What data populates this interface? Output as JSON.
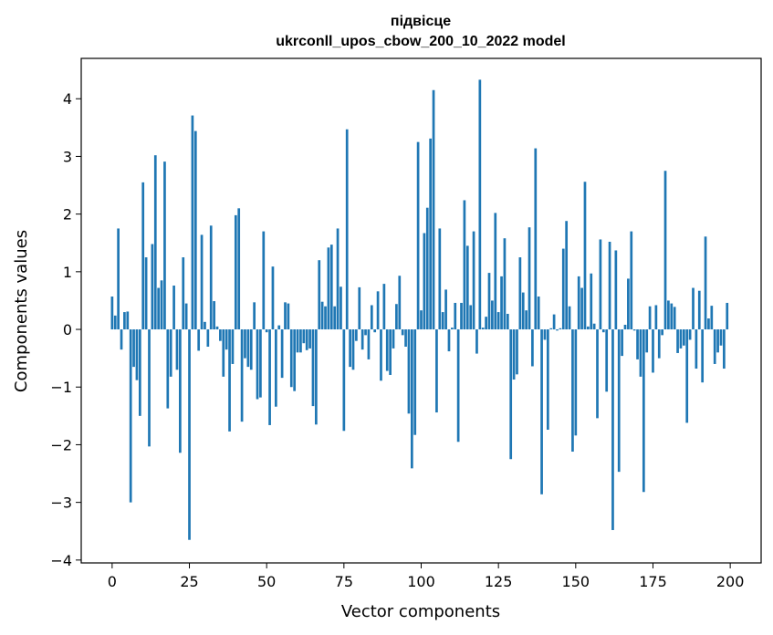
{
  "chart_data": {
    "type": "bar",
    "title_lines": [
      "підвісце",
      "ukrconll_upos_cbow_200_10_2022 model"
    ],
    "xlabel": "Vector components",
    "ylabel": "Components values",
    "xlim": [
      -10,
      210
    ],
    "ylim": [
      -4.05,
      4.7
    ],
    "xticks": [
      0,
      25,
      50,
      75,
      100,
      125,
      150,
      175,
      200
    ],
    "yticks": [
      -4,
      -3,
      -2,
      -1,
      0,
      1,
      2,
      3,
      4
    ],
    "bar_color": "#1f77b4",
    "grid": false,
    "legend": "none",
    "x": [
      0,
      1,
      2,
      3,
      4,
      5,
      6,
      7,
      8,
      9,
      10,
      11,
      12,
      13,
      14,
      15,
      16,
      17,
      18,
      19,
      20,
      21,
      22,
      23,
      24,
      25,
      26,
      27,
      28,
      29,
      30,
      31,
      32,
      33,
      34,
      35,
      36,
      37,
      38,
      39,
      40,
      41,
      42,
      43,
      44,
      45,
      46,
      47,
      48,
      49,
      50,
      51,
      52,
      53,
      54,
      55,
      56,
      57,
      58,
      59,
      60,
      61,
      62,
      63,
      64,
      65,
      66,
      67,
      68,
      69,
      70,
      71,
      72,
      73,
      74,
      75,
      76,
      77,
      78,
      79,
      80,
      81,
      82,
      83,
      84,
      85,
      86,
      87,
      88,
      89,
      90,
      91,
      92,
      93,
      94,
      95,
      96,
      97,
      98,
      99,
      100,
      101,
      102,
      103,
      104,
      105,
      106,
      107,
      108,
      109,
      110,
      111,
      112,
      113,
      114,
      115,
      116,
      117,
      118,
      119,
      120,
      121,
      122,
      123,
      124,
      125,
      126,
      127,
      128,
      129,
      130,
      131,
      132,
      133,
      134,
      135,
      136,
      137,
      138,
      139,
      140,
      141,
      142,
      143,
      144,
      145,
      146,
      147,
      148,
      149,
      150,
      151,
      152,
      153,
      154,
      155,
      156,
      157,
      158,
      159,
      160,
      161,
      162,
      163,
      164,
      165,
      166,
      167,
      168,
      169,
      170,
      171,
      172,
      173,
      174,
      175,
      176,
      177,
      178,
      179,
      180,
      181,
      182,
      183,
      184,
      185,
      186,
      187,
      188,
      189,
      190,
      191,
      192,
      193,
      194,
      195,
      196,
      197,
      198,
      199
    ],
    "values": [
      0.57,
      0.24,
      1.75,
      -0.35,
      0.3,
      0.31,
      -3.0,
      -0.65,
      -0.88,
      -1.5,
      2.55,
      1.25,
      -2.03,
      1.48,
      3.02,
      0.72,
      0.85,
      2.91,
      -1.37,
      -0.82,
      0.76,
      -0.7,
      -2.14,
      1.25,
      0.45,
      -3.65,
      3.71,
      3.44,
      -0.37,
      1.64,
      0.13,
      -0.3,
      1.8,
      0.49,
      0.05,
      -0.2,
      -0.82,
      -0.35,
      -1.77,
      -0.6,
      1.98,
      2.1,
      -1.6,
      -0.5,
      -0.65,
      -0.7,
      0.47,
      -1.21,
      -1.18,
      1.7,
      -0.05,
      -1.66,
      1.09,
      -1.34,
      0.07,
      -0.84,
      0.47,
      0.45,
      -1.0,
      -1.07,
      -0.4,
      -0.4,
      -0.24,
      -0.36,
      -0.33,
      -1.33,
      -1.65,
      1.2,
      0.48,
      0.4,
      1.42,
      1.47,
      0.4,
      1.75,
      0.74,
      -1.76,
      3.47,
      -0.65,
      -0.7,
      -0.2,
      0.73,
      -0.35,
      -0.1,
      -0.52,
      0.42,
      -0.05,
      0.66,
      -0.89,
      0.79,
      -0.72,
      -0.79,
      -0.33,
      0.44,
      0.93,
      -0.1,
      -0.3,
      -1.46,
      -2.41,
      -1.83,
      3.25,
      0.33,
      1.67,
      2.11,
      3.31,
      4.15,
      -1.44,
      1.75,
      0.3,
      0.69,
      -0.38,
      0.03,
      0.46,
      -1.95,
      0.46,
      2.24,
      1.45,
      0.42,
      1.7,
      -0.42,
      4.33,
      0.03,
      0.22,
      0.98,
      0.5,
      2.02,
      0.3,
      0.92,
      1.58,
      0.27,
      -2.25,
      -0.87,
      -0.78,
      1.25,
      0.64,
      0.33,
      1.77,
      -0.64,
      3.14,
      0.57,
      -2.86,
      -0.18,
      -1.74,
      0.02,
      0.26,
      -0.02,
      0.02,
      1.4,
      1.88,
      0.4,
      -2.12,
      -1.84,
      0.92,
      0.72,
      2.56,
      0.05,
      0.97,
      0.1,
      -1.54,
      1.56,
      -0.05,
      -1.08,
      1.52,
      -3.48,
      1.37,
      -2.47,
      -0.46,
      0.08,
      0.88,
      1.7,
      -0.02,
      -0.52,
      -0.82,
      -2.82,
      -0.4,
      0.4,
      -0.75,
      0.42,
      -0.5,
      -0.1,
      2.75,
      0.5,
      0.45,
      0.39,
      -0.41,
      -0.33,
      -0.28,
      -1.62,
      -0.18,
      0.72,
      -0.68,
      0.67,
      -0.92,
      1.61,
      0.19,
      0.41,
      -0.6,
      -0.4,
      -0.28,
      -0.68,
      0.46
    ]
  }
}
